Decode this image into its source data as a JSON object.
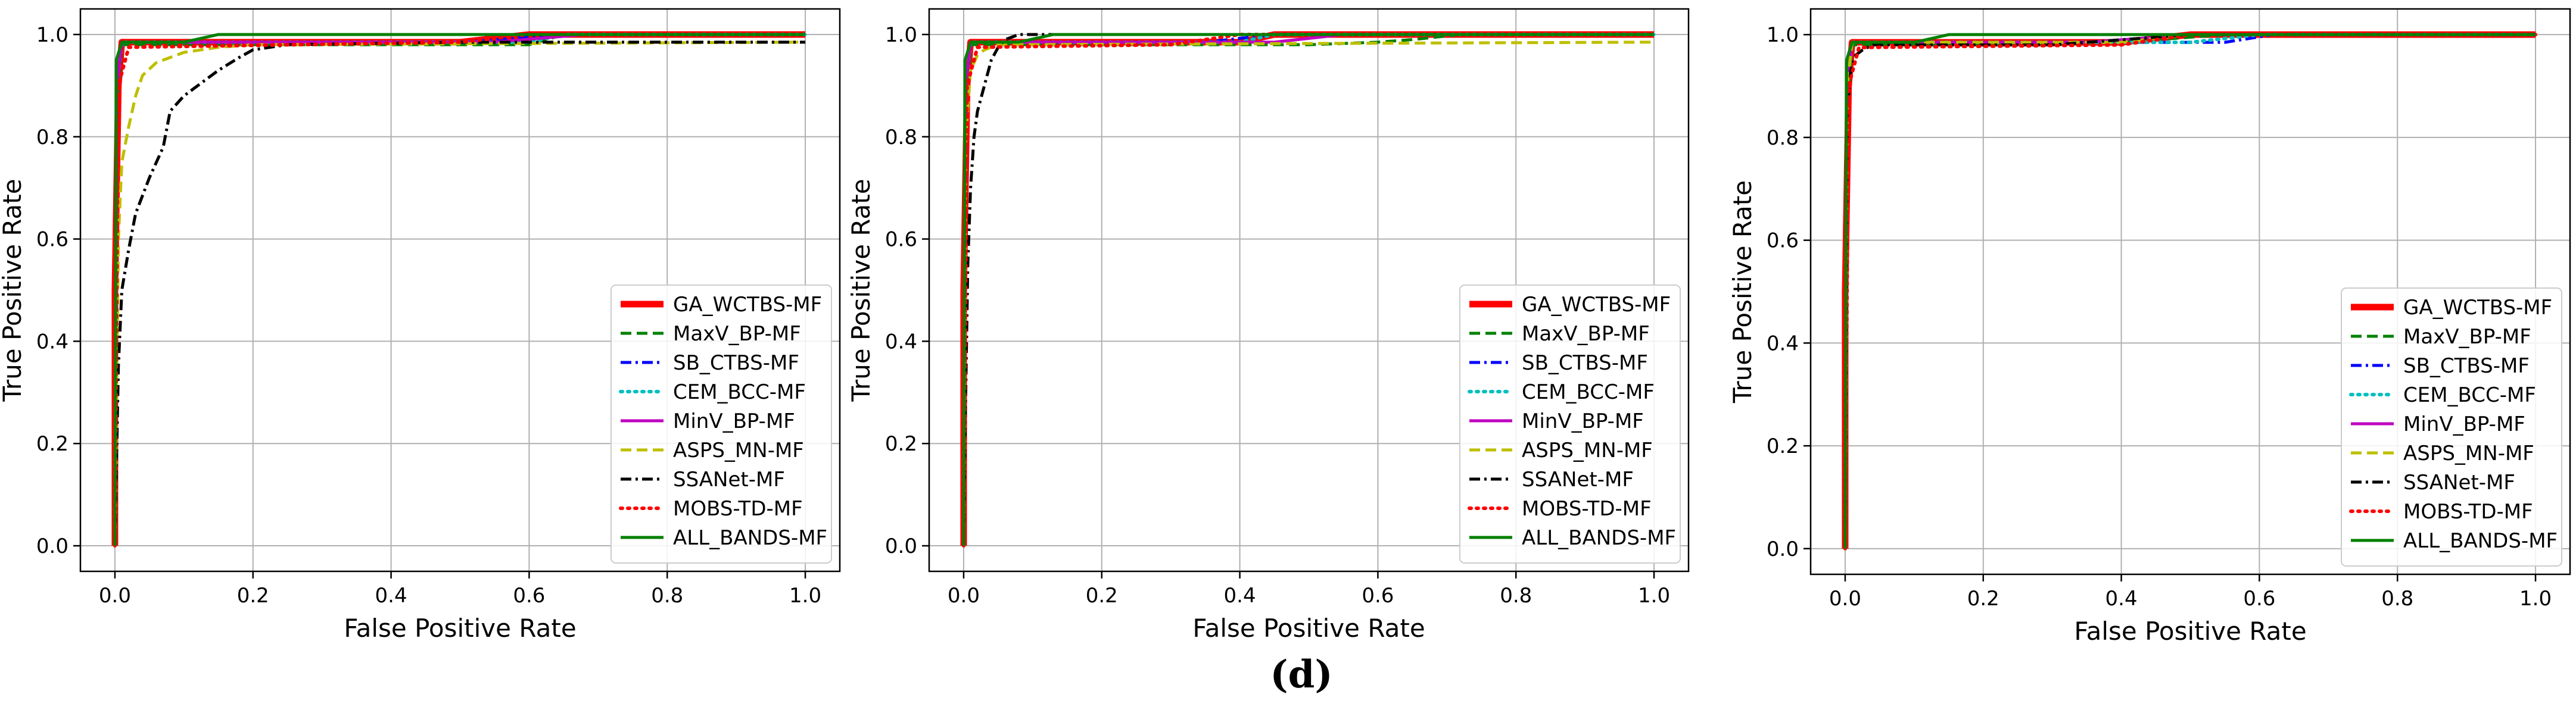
{
  "figure_caption": "(d)",
  "chart_data": [
    {
      "type": "line",
      "title": "",
      "xlabel": "False Positive Rate",
      "ylabel": "True Positive Rate",
      "xlim": [
        -0.05,
        1.05
      ],
      "ylim": [
        -0.05,
        1.05
      ],
      "xticks": [
        "0.0",
        "0.2",
        "0.4",
        "0.6",
        "0.8",
        "1.0"
      ],
      "yticks": [
        "0.0",
        "0.2",
        "0.4",
        "0.6",
        "0.8",
        "1.0"
      ],
      "grid": true,
      "legend_position": "lower-right",
      "series": [
        {
          "name": "GA_WCTBS-MF",
          "color": "#ff0000",
          "style": "solid-thick",
          "x": [
            0,
            0,
            0.005,
            0.01,
            0.5,
            0.6,
            1.0
          ],
          "y": [
            0,
            0.5,
            0.9,
            0.985,
            0.985,
            1.0,
            1.0
          ]
        },
        {
          "name": "MaxV_BP-MF",
          "color": "#008000",
          "style": "dashed",
          "x": [
            0,
            0.002,
            0.01,
            0.2,
            0.6,
            0.65,
            1.0
          ],
          "y": [
            0,
            0.85,
            0.98,
            0.98,
            0.98,
            1.0,
            1.0
          ]
        },
        {
          "name": "SB_CTBS-MF",
          "color": "#0000ff",
          "style": "dashdot",
          "x": [
            0,
            0.003,
            0.01,
            0.5,
            0.65,
            1.0
          ],
          "y": [
            0,
            0.9,
            0.985,
            0.985,
            1.0,
            1.0
          ]
        },
        {
          "name": "CEM_BCC-MF",
          "color": "#00bfbf",
          "style": "dotted",
          "x": [
            0,
            0.003,
            0.01,
            0.6,
            0.65,
            1.0
          ],
          "y": [
            0,
            0.9,
            0.985,
            0.985,
            1.0,
            1.0
          ]
        },
        {
          "name": "MinV_BP-MF",
          "color": "#bf00bf",
          "style": "solid",
          "x": [
            0,
            0.003,
            0.01,
            0.55,
            0.68,
            1.0
          ],
          "y": [
            0,
            0.9,
            0.985,
            0.985,
            1.0,
            1.0
          ]
        },
        {
          "name": "ASPS_MN-MF",
          "color": "#bfbf00",
          "style": "dashed",
          "x": [
            0,
            0.005,
            0.01,
            0.02,
            0.03,
            0.04,
            0.06,
            0.1,
            0.15,
            0.2,
            1.0
          ],
          "y": [
            0,
            0.6,
            0.75,
            0.82,
            0.88,
            0.92,
            0.945,
            0.965,
            0.975,
            0.98,
            0.985
          ]
        },
        {
          "name": "SSANet-MF",
          "color": "#000000",
          "style": "dashdot",
          "x": [
            0,
            0.005,
            0.01,
            0.02,
            0.03,
            0.05,
            0.07,
            0.08,
            0.1,
            0.12,
            0.15,
            0.18,
            0.2,
            0.25,
            0.5,
            1.0
          ],
          "y": [
            0,
            0.35,
            0.5,
            0.58,
            0.65,
            0.72,
            0.78,
            0.85,
            0.88,
            0.9,
            0.93,
            0.955,
            0.97,
            0.98,
            0.985,
            0.985
          ]
        },
        {
          "name": "MOBS-TD-MF",
          "color": "#ff0000",
          "style": "dotted",
          "x": [
            0,
            0.005,
            0.02,
            0.5,
            0.6,
            1.0
          ],
          "y": [
            0,
            0.9,
            0.975,
            0.985,
            1.0,
            1.0
          ]
        },
        {
          "name": "ALL_BANDS-MF",
          "color": "#008000",
          "style": "solid",
          "x": [
            0,
            0.002,
            0.01,
            0.1,
            0.15,
            0.6,
            1.0
          ],
          "y": [
            0,
            0.95,
            0.985,
            0.985,
            1.0,
            1.0,
            1.0
          ]
        }
      ]
    },
    {
      "type": "line",
      "title": "",
      "xlabel": "False Positive Rate",
      "ylabel": "True Positive Rate",
      "xlim": [
        -0.05,
        1.05
      ],
      "ylim": [
        -0.05,
        1.05
      ],
      "xticks": [
        "0.0",
        "0.2",
        "0.4",
        "0.6",
        "0.8",
        "1.0"
      ],
      "yticks": [
        "0.0",
        "0.2",
        "0.4",
        "0.6",
        "0.8",
        "1.0"
      ],
      "grid": true,
      "legend_position": "lower-right",
      "series": [
        {
          "name": "GA_WCTBS-MF",
          "color": "#ff0000",
          "style": "solid-thick",
          "x": [
            0,
            0,
            0.005,
            0.01,
            0.4,
            0.45,
            1.0
          ],
          "y": [
            0,
            0.5,
            0.9,
            0.985,
            0.985,
            1.0,
            1.0
          ]
        },
        {
          "name": "MaxV_BP-MF",
          "color": "#008000",
          "style": "dashed",
          "x": [
            0,
            0.003,
            0.01,
            0.5,
            0.6,
            0.65,
            0.72,
            1.0
          ],
          "y": [
            0,
            0.85,
            0.98,
            0.98,
            0.985,
            0.99,
            1.0,
            1.0
          ]
        },
        {
          "name": "SB_CTBS-MF",
          "color": "#0000ff",
          "style": "dashdot",
          "x": [
            0,
            0.003,
            0.01,
            0.35,
            0.45,
            1.0
          ],
          "y": [
            0,
            0.9,
            0.985,
            0.985,
            1.0,
            1.0
          ]
        },
        {
          "name": "CEM_BCC-MF",
          "color": "#00bfbf",
          "style": "dotted",
          "x": [
            0,
            0.003,
            0.01,
            0.4,
            0.45,
            1.0
          ],
          "y": [
            0,
            0.9,
            0.985,
            0.985,
            1.0,
            1.0
          ]
        },
        {
          "name": "MinV_BP-MF",
          "color": "#bf00bf",
          "style": "solid",
          "x": [
            0,
            0.003,
            0.01,
            0.3,
            0.45,
            0.55,
            1.0
          ],
          "y": [
            0,
            0.9,
            0.985,
            0.985,
            0.985,
            1.0,
            1.0
          ]
        },
        {
          "name": "ASPS_MN-MF",
          "color": "#bfbf00",
          "style": "dashed",
          "x": [
            0,
            0.003,
            0.01,
            0.02,
            0.03,
            0.05,
            1.0
          ],
          "y": [
            0,
            0.8,
            0.93,
            0.96,
            0.97,
            0.98,
            0.985
          ]
        },
        {
          "name": "SSANet-MF",
          "color": "#000000",
          "style": "dashdot",
          "x": [
            0,
            0.003,
            0.006,
            0.01,
            0.015,
            0.02,
            0.03,
            0.04,
            0.05,
            0.06,
            0.08,
            0.1,
            1.0
          ],
          "y": [
            0,
            0.3,
            0.55,
            0.7,
            0.8,
            0.85,
            0.9,
            0.95,
            0.975,
            0.99,
            1.0,
            1.0,
            1.0
          ]
        },
        {
          "name": "MOBS-TD-MF",
          "color": "#ff0000",
          "style": "dotted",
          "x": [
            0,
            0.005,
            0.02,
            0.3,
            0.4,
            1.0
          ],
          "y": [
            0,
            0.9,
            0.975,
            0.98,
            1.0,
            1.0
          ]
        },
        {
          "name": "ALL_BANDS-MF",
          "color": "#008000",
          "style": "solid",
          "x": [
            0,
            0.002,
            0.01,
            0.08,
            0.13,
            1.0
          ],
          "y": [
            0,
            0.95,
            0.985,
            0.985,
            1.0,
            1.0
          ]
        }
      ]
    },
    {
      "type": "line",
      "title": "",
      "xlabel": "False Positive Rate",
      "ylabel": "True Positive Rate",
      "xlim": [
        -0.05,
        1.05
      ],
      "ylim": [
        -0.05,
        1.05
      ],
      "xticks": [
        "0.0",
        "0.2",
        "0.4",
        "0.6",
        "0.8",
        "1.0"
      ],
      "yticks": [
        "0.0",
        "0.2",
        "0.4",
        "0.6",
        "0.8",
        "1.0"
      ],
      "grid": true,
      "legend_position": "lower-right",
      "series": [
        {
          "name": "GA_WCTBS-MF",
          "color": "#ff0000",
          "style": "solid-thick",
          "x": [
            0,
            0,
            0.005,
            0.01,
            0.4,
            0.5,
            1.0
          ],
          "y": [
            0,
            0.5,
            0.9,
            0.985,
            0.985,
            1.0,
            1.0
          ]
        },
        {
          "name": "MaxV_BP-MF",
          "color": "#008000",
          "style": "dashed",
          "x": [
            0,
            0.003,
            0.01,
            0.3,
            0.45,
            0.55,
            1.0
          ],
          "y": [
            0,
            0.85,
            0.98,
            0.98,
            0.99,
            1.0,
            1.0
          ]
        },
        {
          "name": "SB_CTBS-MF",
          "color": "#0000ff",
          "style": "dashdot",
          "x": [
            0,
            0.003,
            0.01,
            0.45,
            0.55,
            0.62,
            1.0
          ],
          "y": [
            0,
            0.9,
            0.985,
            0.985,
            0.985,
            1.0,
            1.0
          ]
        },
        {
          "name": "CEM_BCC-MF",
          "color": "#00bfbf",
          "style": "dotted",
          "x": [
            0,
            0.003,
            0.01,
            0.5,
            0.6,
            1.0
          ],
          "y": [
            0,
            0.9,
            0.985,
            0.985,
            1.0,
            1.0
          ]
        },
        {
          "name": "MinV_BP-MF",
          "color": "#bf00bf",
          "style": "solid",
          "x": [
            0,
            0.003,
            0.01,
            0.35,
            0.5,
            1.0
          ],
          "y": [
            0,
            0.9,
            0.985,
            0.985,
            1.0,
            1.0
          ]
        },
        {
          "name": "ASPS_MN-MF",
          "color": "#bfbf00",
          "style": "dashed",
          "x": [
            0,
            0.003,
            0.01,
            0.4,
            0.5,
            1.0
          ],
          "y": [
            0,
            0.9,
            0.985,
            0.985,
            1.0,
            1.0
          ]
        },
        {
          "name": "SSANet-MF",
          "color": "#000000",
          "style": "dashdot",
          "x": [
            0,
            0.003,
            0.008,
            0.015,
            0.025,
            0.04,
            0.3,
            0.4,
            0.5,
            1.0
          ],
          "y": [
            0,
            0.85,
            0.93,
            0.96,
            0.97,
            0.98,
            0.98,
            0.99,
            1.0,
            1.0
          ]
        },
        {
          "name": "MOBS-TD-MF",
          "color": "#ff0000",
          "style": "dotted",
          "x": [
            0,
            0.005,
            0.02,
            0.4,
            0.5,
            1.0
          ],
          "y": [
            0,
            0.9,
            0.975,
            0.98,
            1.0,
            1.0
          ]
        },
        {
          "name": "ALL_BANDS-MF",
          "color": "#008000",
          "style": "solid",
          "x": [
            0,
            0.002,
            0.01,
            0.1,
            0.15,
            1.0
          ],
          "y": [
            0,
            0.95,
            0.985,
            0.985,
            1.0,
            1.0
          ]
        }
      ]
    }
  ]
}
